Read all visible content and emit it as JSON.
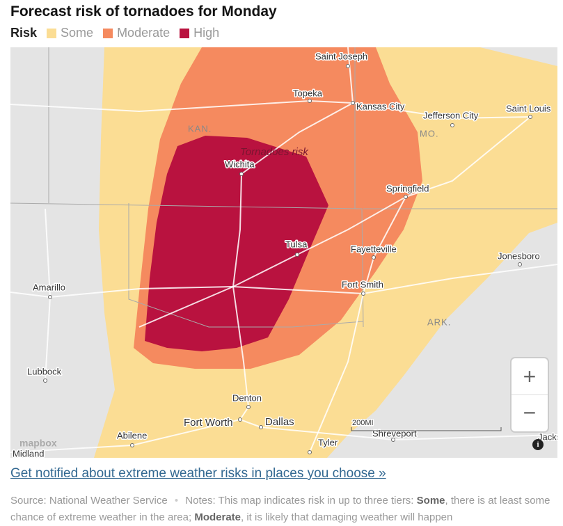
{
  "header": {
    "title": "Forecast risk of tornadoes for Monday"
  },
  "legend": {
    "label": "Risk",
    "items": [
      {
        "label": "Some",
        "color": "#fbdd94"
      },
      {
        "label": "Moderate",
        "color": "#f58a5f"
      },
      {
        "label": "High",
        "color": "#b9123f"
      }
    ]
  },
  "map": {
    "region_label": "Tornadoes risk",
    "states": [
      "KAN.",
      "MO.",
      "ARK."
    ],
    "cities": [
      "Saint Joseph",
      "Topeka",
      "Kansas City",
      "Jefferson City",
      "Saint Louis",
      "Wichita",
      "Springfield",
      "Tulsa",
      "Fayetteville",
      "Jonesboro",
      "Amarillo",
      "Fort Smith",
      "Lubbock",
      "Denton",
      "Fort Worth",
      "Dallas",
      "Abilene",
      "Tyler",
      "Shreveport",
      "Midland",
      "Jacks"
    ],
    "scale": "200MI",
    "attribution": "mapbox",
    "controls": {
      "zoom_in": "+",
      "zoom_out": "−",
      "info": "i"
    }
  },
  "link": "Get notified about extreme weather risks in places you choose »",
  "footer": {
    "source": "Source: National Weather Service",
    "separator": "•",
    "notes": [
      "Notes: This map indicates risk in up to three tiers: ",
      "Some",
      ", there is at least some chance of extreme weather in the area; ",
      "Moderate",
      ", it is likely that damaging weather will happen"
    ]
  }
}
